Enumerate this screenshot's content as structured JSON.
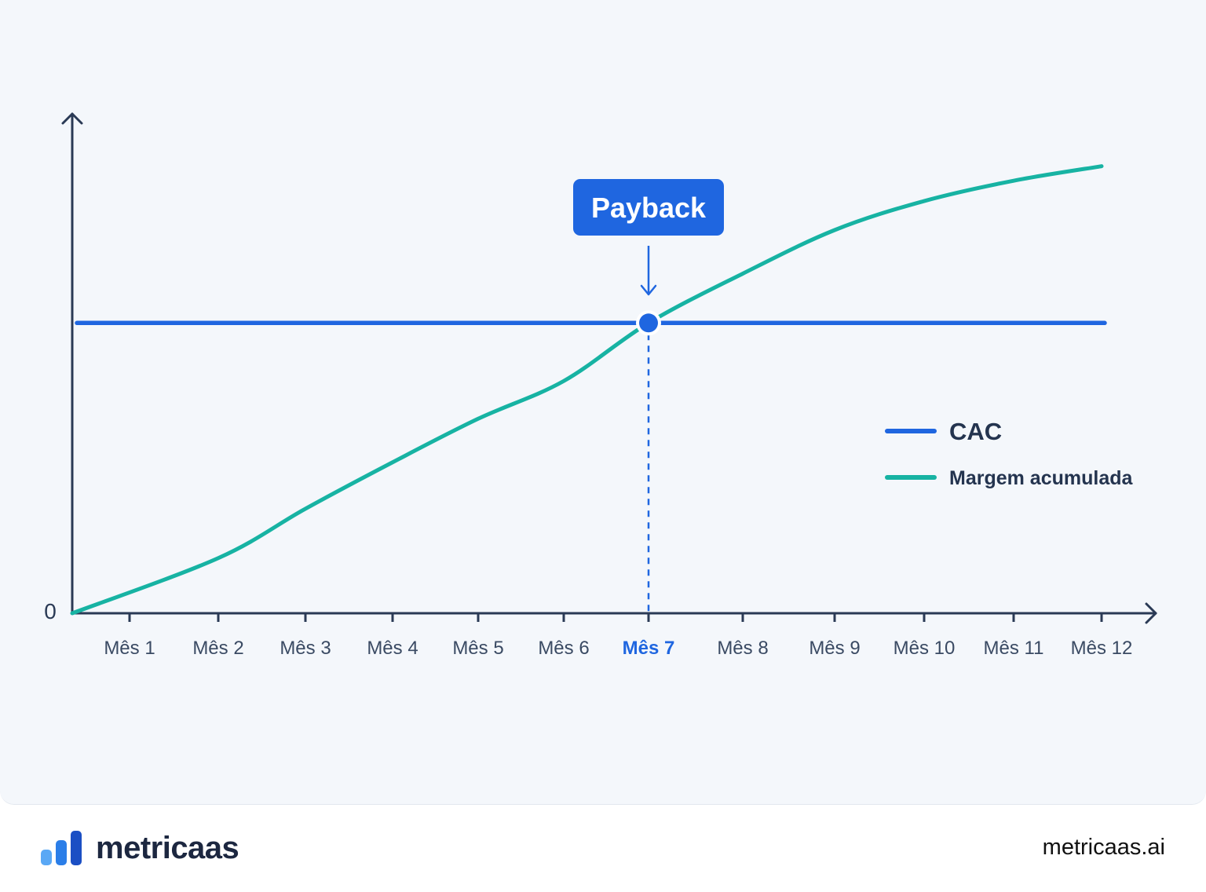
{
  "chart_data": {
    "type": "line",
    "x": [
      "Mês 1",
      "Mês 2",
      "Mês 3",
      "Mês 4",
      "Mês 5",
      "Mês 6",
      "Mês 7",
      "Mês 8",
      "Mês 9",
      "Mês 10",
      "Mês 11",
      "Mês 12"
    ],
    "y_zero_label": "0",
    "highlight_category": "Mês 7",
    "series": [
      {
        "name": "CAC",
        "color": "#1f66e0",
        "values": [
          1,
          1,
          1,
          1,
          1,
          1,
          1,
          1,
          1,
          1,
          1,
          1
        ]
      },
      {
        "name": "Margem acumulada",
        "color": "#17b3a3",
        "values": [
          0.0,
          0.19,
          0.36,
          0.52,
          0.67,
          0.8,
          1.0,
          1.17,
          1.32,
          1.42,
          1.49,
          1.54
        ]
      }
    ],
    "ylim": [
      0,
      1.65
    ],
    "annotation": {
      "label": "Payback",
      "at_category": "Mês 7",
      "marker": "payback-point"
    },
    "legend": {
      "placement": "right"
    },
    "grid": false,
    "accent_color": "#1f66e0"
  },
  "footer": {
    "brand_name": "metricaas",
    "url": "metricaas.ai",
    "logo_colors": [
      "#5aa8f5",
      "#2b7ee8",
      "#1b4fc4"
    ]
  }
}
